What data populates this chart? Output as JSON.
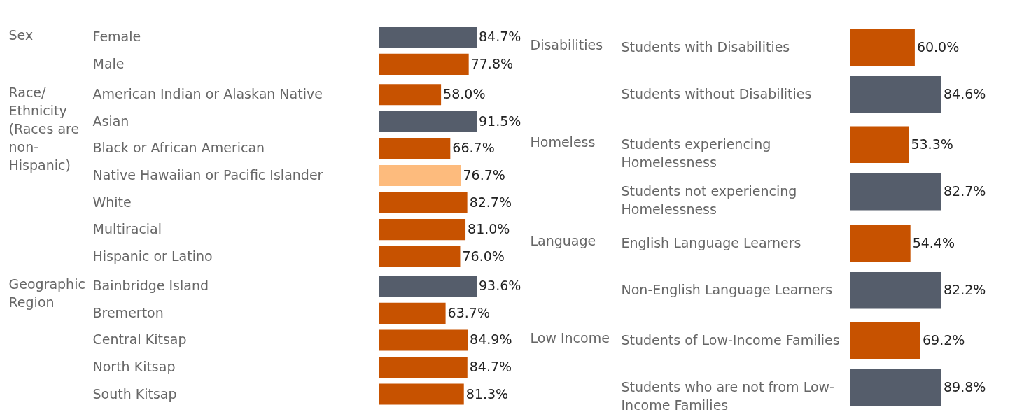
{
  "chart_data": [
    {
      "type": "bar",
      "orientation": "horizontal",
      "ylabel": "Sex",
      "categories": [
        "Female",
        "Male"
      ],
      "values": [
        84.7,
        77.8
      ],
      "colors": [
        "#555d6b",
        "#c75200"
      ],
      "value_labels": [
        "84.7%",
        "77.8%"
      ],
      "tick_labels": "y"
    },
    {
      "type": "bar",
      "orientation": "horizontal",
      "ylabel": "Race/ Ethnicity (Races are non-Hispanic)",
      "categories": [
        "American Indian or Alaskan Native",
        "Asian",
        "Black or African American",
        "Native Hawaiian or Pacific Islander",
        "White",
        "Multiracial",
        "Hispanic or Latino"
      ],
      "values": [
        58.0,
        91.5,
        66.7,
        76.7,
        82.7,
        81.0,
        76.0
      ],
      "colors": [
        "#c75200",
        "#555d6b",
        "#c75200",
        "#fdbb7d",
        "#c75200",
        "#c75200",
        "#c75200"
      ],
      "value_labels": [
        "58.0%",
        "91.5%",
        "66.7%",
        "76.7%",
        "82.7%",
        "81.0%",
        "76.0%"
      ],
      "tick_labels": "y"
    },
    {
      "type": "bar",
      "orientation": "horizontal",
      "ylabel": "Geographic Region",
      "categories": [
        "Bainbridge Island",
        "Bremerton",
        "Central Kitsap",
        "North Kitsap",
        "South Kitsap"
      ],
      "values": [
        93.6,
        63.7,
        84.9,
        84.7,
        81.3
      ],
      "colors": [
        "#555d6b",
        "#c75200",
        "#c75200",
        "#c75200",
        "#c75200"
      ],
      "value_labels": [
        "93.6%",
        "63.7%",
        "84.9%",
        "84.7%",
        "81.3%"
      ],
      "tick_labels": "y"
    },
    {
      "type": "bar",
      "orientation": "horizontal",
      "ylabel": "Disabilities",
      "categories": [
        "Students with Disabilities",
        "Students without Disabilities"
      ],
      "values": [
        60.0,
        84.6
      ],
      "colors": [
        "#c75200",
        "#555d6b"
      ],
      "value_labels": [
        "60.0%",
        "84.6%"
      ],
      "tick_labels": "y"
    },
    {
      "type": "bar",
      "orientation": "horizontal",
      "ylabel": "Homeless",
      "categories": [
        "Students experiencing Homelessness",
        "Students not experiencing Homelessness"
      ],
      "values": [
        53.3,
        82.7
      ],
      "colors": [
        "#c75200",
        "#555d6b"
      ],
      "value_labels": [
        "53.3%",
        "82.7%"
      ],
      "tick_labels": "y"
    },
    {
      "type": "bar",
      "orientation": "horizontal",
      "ylabel": "Language",
      "categories": [
        "English Language Learners",
        "Non-English Language Learners"
      ],
      "values": [
        54.4,
        82.2
      ],
      "colors": [
        "#c75200",
        "#555d6b"
      ],
      "value_labels": [
        "54.4%",
        "82.2%"
      ],
      "tick_labels": "y"
    },
    {
      "type": "bar",
      "orientation": "horizontal",
      "ylabel": "Low Income",
      "categories": [
        "Students of Low-Income Families",
        "Students who are not from Low-Income Families"
      ],
      "values": [
        69.2,
        89.8
      ],
      "colors": [
        "#c75200",
        "#555d6b"
      ],
      "value_labels": [
        "69.2%",
        "89.8%"
      ],
      "tick_labels": "y"
    }
  ]
}
